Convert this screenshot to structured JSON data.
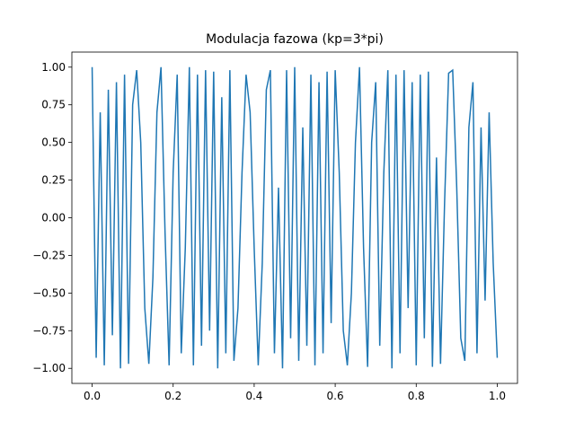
{
  "chart_data": {
    "type": "line",
    "title": "Modulacja fazowa (kp=3*pi)",
    "x": [
      0.0,
      0.01,
      0.02,
      0.03,
      0.04,
      0.05,
      0.06,
      0.07,
      0.08,
      0.09,
      0.1,
      0.11,
      0.12,
      0.13,
      0.14,
      0.15,
      0.16,
      0.17,
      0.18,
      0.19,
      0.2,
      0.21,
      0.22,
      0.23,
      0.24,
      0.25,
      0.26,
      0.27,
      0.28,
      0.29,
      0.3,
      0.31,
      0.32,
      0.33,
      0.34,
      0.35,
      0.36,
      0.37,
      0.38,
      0.39,
      0.4,
      0.41,
      0.42,
      0.43,
      0.44,
      0.45,
      0.46,
      0.47,
      0.48,
      0.49,
      0.5,
      0.51,
      0.52,
      0.53,
      0.54,
      0.55,
      0.56,
      0.57,
      0.58,
      0.59,
      0.6,
      0.61,
      0.62,
      0.63,
      0.64,
      0.65,
      0.66,
      0.67,
      0.68,
      0.69,
      0.7,
      0.71,
      0.72,
      0.73,
      0.74,
      0.75,
      0.76,
      0.77,
      0.78,
      0.79,
      0.8,
      0.81,
      0.82,
      0.83,
      0.84,
      0.85,
      0.86,
      0.87,
      0.88,
      0.89,
      0.9,
      0.91,
      0.92,
      0.93,
      0.94,
      0.95,
      0.96,
      0.97,
      0.98,
      0.99,
      1.0
    ],
    "series": [
      {
        "color": "#1f77b4",
        "values": [
          1.0,
          -0.93,
          0.7,
          -0.98,
          0.85,
          -0.78,
          0.9,
          -1.0,
          0.95,
          -0.97,
          0.75,
          0.98,
          0.5,
          -0.6,
          -0.97,
          -0.4,
          0.7,
          1.0,
          -0.1,
          -0.98,
          0.3,
          0.95,
          -0.9,
          -0.2,
          1.0,
          -0.98,
          0.95,
          -0.85,
          0.98,
          -0.75,
          0.97,
          -1.0,
          0.8,
          -0.9,
          0.98,
          -0.95,
          -0.6,
          0.3,
          0.95,
          0.7,
          -0.2,
          -0.98,
          -0.3,
          0.85,
          0.98,
          -0.9,
          0.2,
          -1.0,
          0.98,
          -0.8,
          1.0,
          -0.95,
          0.6,
          -0.85,
          0.95,
          -0.98,
          0.9,
          -0.9,
          0.97,
          -0.7,
          0.98,
          0.3,
          -0.75,
          -0.98,
          -0.5,
          0.5,
          1.0,
          -0.2,
          -0.99,
          0.5,
          0.9,
          -0.85,
          0.3,
          0.98,
          -1.0,
          0.95,
          -0.9,
          0.98,
          -0.6,
          0.9,
          -0.98,
          0.95,
          -0.8,
          0.97,
          -0.99,
          0.4,
          -0.97,
          0.1,
          0.96,
          0.98,
          0.2,
          -0.8,
          -0.95,
          0.6,
          0.9,
          -0.9,
          0.6,
          -0.55,
          0.7,
          -0.3,
          -0.93
        ]
      }
    ],
    "xlim": [
      -0.05,
      1.05
    ],
    "ylim": [
      -1.1,
      1.1
    ],
    "xticks": [
      {
        "value": 0,
        "label": "0.0"
      },
      {
        "value": 0.2,
        "label": "0.2"
      },
      {
        "value": 0.4,
        "label": "0.4"
      },
      {
        "value": 0.6,
        "label": "0.6"
      },
      {
        "value": 0.8,
        "label": "0.8"
      },
      {
        "value": 1,
        "label": "1.0"
      }
    ],
    "yticks": [
      {
        "value": -1,
        "label": "−1.00"
      },
      {
        "value": -0.75,
        "label": "−0.75"
      },
      {
        "value": -0.5,
        "label": "−0.50"
      },
      {
        "value": -0.25,
        "label": "−0.25"
      },
      {
        "value": 0,
        "label": "0.00"
      },
      {
        "value": 0.25,
        "label": "0.25"
      },
      {
        "value": 0.5,
        "label": "0.50"
      },
      {
        "value": 0.75,
        "label": "0.75"
      },
      {
        "value": 1,
        "label": "1.00"
      }
    ],
    "grid": false
  }
}
